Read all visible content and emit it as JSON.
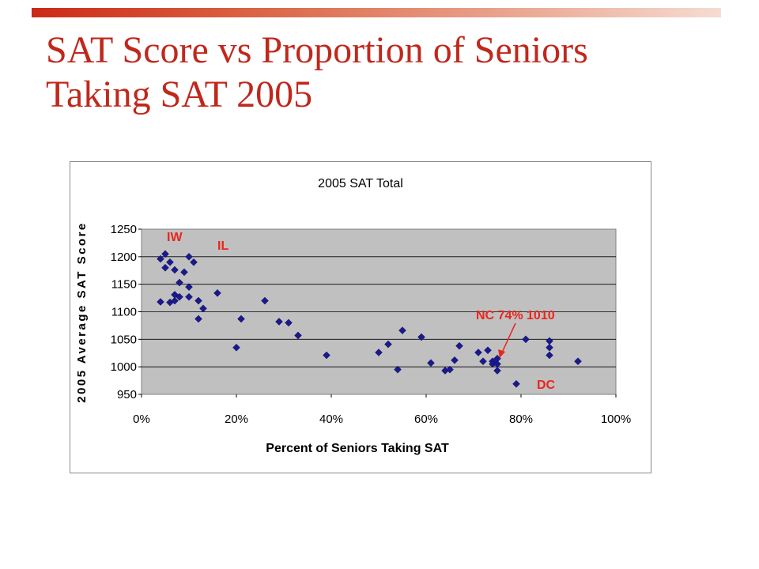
{
  "slide": {
    "title_line1": "SAT Score vs Proportion of Seniors",
    "title_line2": "Taking SAT 2005"
  },
  "colors": {
    "title": "#c0281c",
    "plot_area": "#c0c0c0",
    "marker": "#1a1a8c",
    "annotation": "#e8261c"
  },
  "chart_data": {
    "type": "scatter",
    "title": "2005 SAT Total",
    "xlabel": "Percent of Seniors Taking SAT",
    "ylabel": "2005 Average SAT Score",
    "xlim": [
      0,
      1
    ],
    "ylim": [
      950,
      1250
    ],
    "xticks": [
      0,
      0.2,
      0.4,
      0.6,
      0.8,
      1.0
    ],
    "xtick_labels": [
      "0%",
      "20%",
      "40%",
      "60%",
      "80%",
      "100%"
    ],
    "yticks": [
      950,
      1000,
      1050,
      1100,
      1150,
      1200,
      1250
    ],
    "ytick_labels": [
      "950",
      "1000",
      "1050",
      "1100",
      "1150",
      "1200",
      "1250"
    ],
    "grid": "horizontal",
    "legend": "none",
    "marker": "diamond",
    "series": [
      {
        "points": [
          [
            0.04,
            1196
          ],
          [
            0.05,
            1205
          ],
          [
            0.06,
            1190
          ],
          [
            0.05,
            1180
          ],
          [
            0.07,
            1176
          ],
          [
            0.1,
            1200
          ],
          [
            0.11,
            1190
          ],
          [
            0.09,
            1172
          ],
          [
            0.08,
            1153
          ],
          [
            0.1,
            1145
          ],
          [
            0.07,
            1131
          ],
          [
            0.08,
            1127
          ],
          [
            0.1,
            1127
          ],
          [
            0.04,
            1118
          ],
          [
            0.06,
            1117
          ],
          [
            0.07,
            1120
          ],
          [
            0.12,
            1120
          ],
          [
            0.13,
            1106
          ],
          [
            0.12,
            1087
          ],
          [
            0.16,
            1134
          ],
          [
            0.21,
            1087
          ],
          [
            0.2,
            1035
          ],
          [
            0.26,
            1120
          ],
          [
            0.29,
            1082
          ],
          [
            0.31,
            1080
          ],
          [
            0.33,
            1057
          ],
          [
            0.39,
            1021
          ],
          [
            0.5,
            1026
          ],
          [
            0.52,
            1041
          ],
          [
            0.54,
            995
          ],
          [
            0.55,
            1066
          ],
          [
            0.59,
            1054
          ],
          [
            0.61,
            1007
          ],
          [
            0.64,
            993
          ],
          [
            0.65,
            995
          ],
          [
            0.66,
            1012
          ],
          [
            0.67,
            1038
          ],
          [
            0.71,
            1026
          ],
          [
            0.72,
            1010
          ],
          [
            0.73,
            1030
          ],
          [
            0.74,
            1010
          ],
          [
            0.74,
            1005
          ],
          [
            0.75,
            1015
          ],
          [
            0.75,
            1005
          ],
          [
            0.75,
            993
          ],
          [
            0.79,
            969
          ],
          [
            0.81,
            1050
          ],
          [
            0.86,
            1047
          ],
          [
            0.86,
            1035
          ],
          [
            0.86,
            1021
          ],
          [
            0.92,
            1010
          ]
        ]
      }
    ],
    "annotations": [
      {
        "text": "IW"
      },
      {
        "text": "IL"
      },
      {
        "text": "NC 74% 1010"
      },
      {
        "text": "DC"
      }
    ]
  }
}
